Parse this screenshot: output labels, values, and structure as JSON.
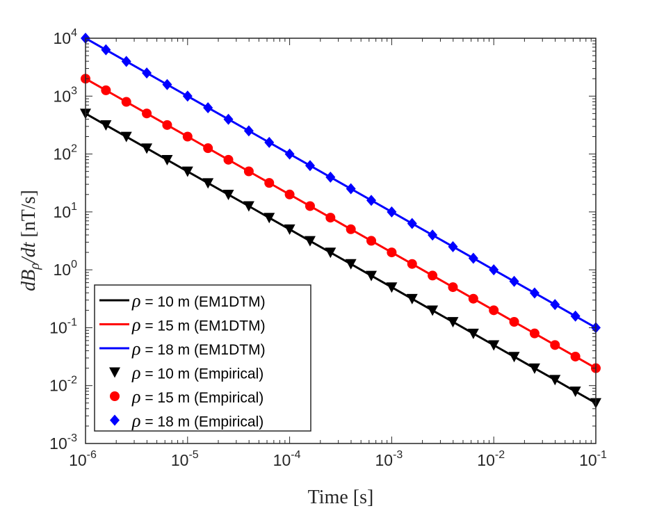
{
  "chart_data": {
    "type": "line",
    "xlabel": "Time [s]",
    "ylabel": {
      "main": "dB",
      "sub": "ρ",
      "rest": "/dt",
      "unit": " [nT/s]"
    },
    "xscale": "log",
    "yscale": "log",
    "xlim": [
      1e-06,
      0.1
    ],
    "ylim": [
      0.001,
      10000.0
    ],
    "grid": false,
    "legend_position": "bottom-left",
    "x_ticks": [
      {
        "base": "10",
        "exp": "-6",
        "v": 1e-06
      },
      {
        "base": "10",
        "exp": "-5",
        "v": 1e-05
      },
      {
        "base": "10",
        "exp": "-4",
        "v": 0.0001
      },
      {
        "base": "10",
        "exp": "-3",
        "v": 0.001
      },
      {
        "base": "10",
        "exp": "-2",
        "v": 0.01
      },
      {
        "base": "10",
        "exp": "-1",
        "v": 0.1
      }
    ],
    "y_ticks": [
      {
        "base": "10",
        "exp": "-3",
        "v": 0.001
      },
      {
        "base": "10",
        "exp": "-2",
        "v": 0.01
      },
      {
        "base": "10",
        "exp": "-1",
        "v": 0.1
      },
      {
        "base": "10",
        "exp": "0",
        "v": 1
      },
      {
        "base": "10",
        "exp": "1",
        "v": 10
      },
      {
        "base": "10",
        "exp": "2",
        "v": 100
      },
      {
        "base": "10",
        "exp": "3",
        "v": 1000
      },
      {
        "base": "10",
        "exp": "4",
        "v": 10000
      }
    ],
    "x": [
      1e-06,
      1.585e-06,
      2.512e-06,
      3.981e-06,
      6.31e-06,
      1e-05,
      1.585e-05,
      2.512e-05,
      3.981e-05,
      6.31e-05,
      0.0001,
      0.0001585,
      0.0002512,
      0.0003981,
      0.000631,
      0.001,
      0.001585,
      0.002512,
      0.003981,
      0.00631,
      0.01,
      0.01585,
      0.02512,
      0.03981,
      0.0631,
      0.1
    ],
    "series": [
      {
        "name": "ρ = 10 m (EM1DTM)",
        "kind": "line",
        "color": "#000000",
        "ref": "black"
      },
      {
        "name": "ρ = 15 m (EM1DTM)",
        "kind": "line",
        "color": "#ff0000",
        "ref": "red"
      },
      {
        "name": "ρ = 18 m (EM1DTM)",
        "kind": "line",
        "color": "#0000ff",
        "ref": "blue"
      },
      {
        "name": "ρ = 10 m (Empirical)",
        "kind": "marker",
        "marker": "triangle-down",
        "color": "#000000",
        "ref": "black"
      },
      {
        "name": "ρ = 15 m (Empirical)",
        "kind": "marker",
        "marker": "circle",
        "color": "#ff0000",
        "ref": "red"
      },
      {
        "name": "ρ = 18 m (Empirical)",
        "kind": "marker",
        "marker": "diamond",
        "color": "#0000ff",
        "ref": "blue"
      }
    ],
    "values": {
      "black": [
        500,
        315.5,
        199.1,
        125.6,
        79.2,
        50,
        31.5,
        19.9,
        12.6,
        7.92,
        5,
        3.15,
        1.99,
        1.26,
        0.792,
        0.5,
        0.315,
        0.199,
        0.126,
        0.0792,
        0.05,
        0.0315,
        0.0199,
        0.0126,
        0.00792,
        0.005
      ],
      "red": [
        2000,
        1262,
        796,
        502,
        317,
        200,
        126.2,
        79.6,
        50.2,
        31.7,
        20,
        12.62,
        7.96,
        5.02,
        3.17,
        2,
        1.262,
        0.796,
        0.502,
        0.317,
        0.2,
        0.1262,
        0.0796,
        0.0502,
        0.0317,
        0.02
      ],
      "blue": [
        10000,
        6310,
        3981,
        2512,
        1585,
        1000,
        631,
        398.1,
        251.2,
        158.5,
        100,
        63.1,
        39.81,
        25.12,
        15.85,
        10,
        6.31,
        3.981,
        2.512,
        1.585,
        1,
        0.631,
        0.3981,
        0.2512,
        0.1585,
        0.1
      ]
    }
  }
}
